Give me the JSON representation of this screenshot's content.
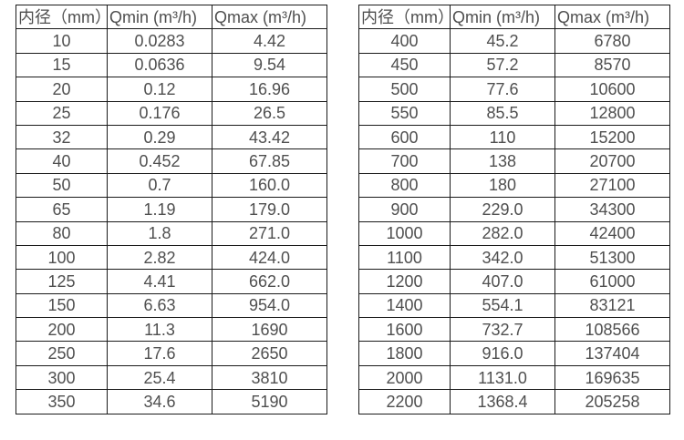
{
  "colors": {
    "border": "#1a1a1a",
    "text": "#4f4f4f",
    "background": "#ffffff"
  },
  "tables": [
    {
      "name": "flow-spec-table-small-diameters",
      "headers": [
        "内径（mm）",
        "Qmin (m³/h)",
        "Qmax (m³/h)"
      ],
      "rows": [
        [
          "10",
          "0.0283",
          "4.42"
        ],
        [
          "15",
          "0.0636",
          "9.54"
        ],
        [
          "20",
          "0.12",
          "16.96"
        ],
        [
          "25",
          "0.176",
          "26.5"
        ],
        [
          "32",
          "0.29",
          "43.42"
        ],
        [
          "40",
          "0.452",
          "67.85"
        ],
        [
          "50",
          "0.7",
          "160.0"
        ],
        [
          "65",
          "1.19",
          "179.0"
        ],
        [
          "80",
          "1.8",
          "271.0"
        ],
        [
          "100",
          "2.82",
          "424.0"
        ],
        [
          "125",
          "4.41",
          "662.0"
        ],
        [
          "150",
          "6.63",
          "954.0"
        ],
        [
          "200",
          "11.3",
          "1690"
        ],
        [
          "250",
          "17.6",
          "2650"
        ],
        [
          "300",
          "25.4",
          "3810"
        ],
        [
          "350",
          "34.6",
          "5190"
        ]
      ]
    },
    {
      "name": "flow-spec-table-large-diameters",
      "headers": [
        "内径（mm）",
        "Qmin (m³/h)",
        "Qmax (m³/h)"
      ],
      "rows": [
        [
          "400",
          "45.2",
          "6780"
        ],
        [
          "450",
          "57.2",
          "8570"
        ],
        [
          "500",
          "77.6",
          "10600"
        ],
        [
          "550",
          "85.5",
          "12800"
        ],
        [
          "600",
          "110",
          "15200"
        ],
        [
          "700",
          "138",
          "20700"
        ],
        [
          "800",
          "180",
          "27100"
        ],
        [
          "900",
          "229.0",
          "34300"
        ],
        [
          "1000",
          "282.0",
          "42400"
        ],
        [
          "1100",
          "342.0",
          "51300"
        ],
        [
          "1200",
          "407.0",
          "61000"
        ],
        [
          "1400",
          "554.1",
          "83121"
        ],
        [
          "1600",
          "732.7",
          "108566"
        ],
        [
          "1800",
          "916.0",
          "137404"
        ],
        [
          "2000",
          "1131.0",
          "169635"
        ],
        [
          "2200",
          "1368.4",
          "205258"
        ]
      ]
    }
  ]
}
